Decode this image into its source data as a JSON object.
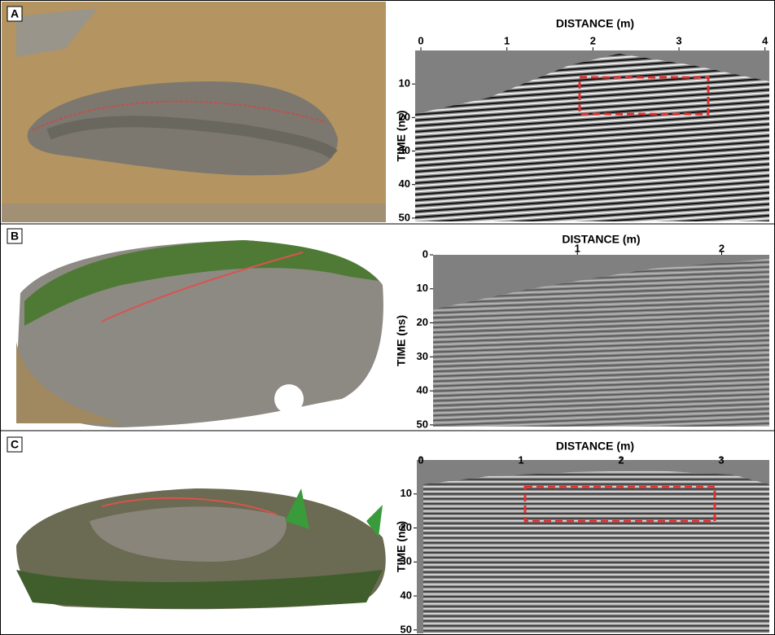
{
  "panels": [
    {
      "label": "A",
      "x_title": "DISTANCE (m)",
      "y_title": "TIME (ns)",
      "xticks": [
        0,
        1,
        2,
        3,
        4
      ],
      "yticks": [
        10,
        20,
        30,
        40,
        50
      ],
      "xlim": [
        0,
        4.05
      ],
      "ylim": [
        0,
        51
      ]
    },
    {
      "label": "B",
      "x_title": "DISTANCE (m)",
      "y_title": "TIME (ns)",
      "xticks": [
        1,
        2
      ],
      "yticks": [
        0,
        10,
        20,
        30,
        40,
        50
      ],
      "xlim": [
        0,
        2.33
      ],
      "ylim": [
        0,
        50.5
      ]
    },
    {
      "label": "C",
      "x_title": "DISTANCE (m)",
      "y_title": "TIME (ns)",
      "xticks": [
        0,
        1,
        2,
        3
      ],
      "yticks": [
        10,
        20,
        30,
        40,
        50
      ],
      "xlim": [
        0,
        3.48
      ],
      "ylim": [
        0,
        51
      ]
    }
  ]
}
